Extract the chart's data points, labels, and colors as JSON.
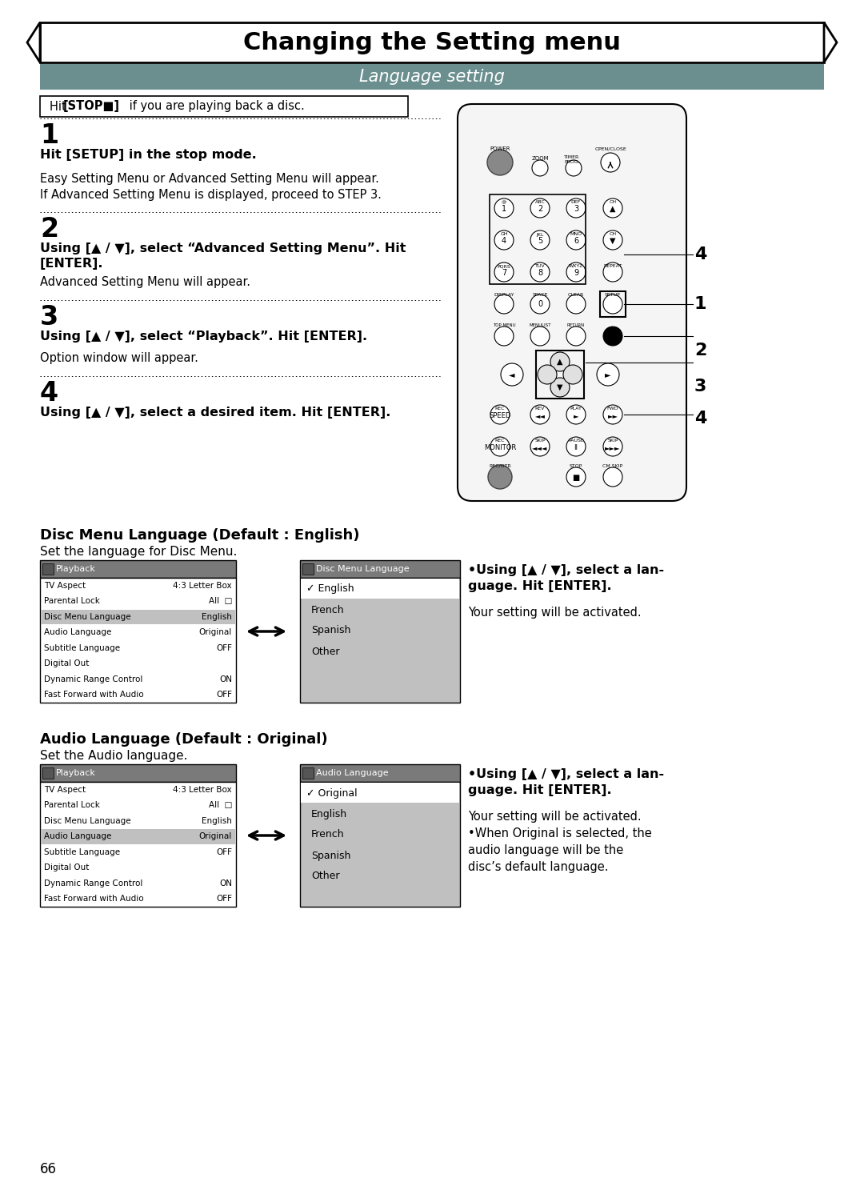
{
  "title": "Changing the Setting menu",
  "subtitle": "Language setting",
  "stop_note_plain": "Hit ",
  "stop_note_bold": "[STOP■]",
  "stop_note_rest": " if you are playing back a disc.",
  "steps": [
    {
      "number": "1",
      "bold_text": "Hit [SETUP] in the stop mode.",
      "normal_text": "Easy Setting Menu or Advanced Setting Menu will appear.\nIf Advanced Setting Menu is displayed, proceed to STEP 3."
    },
    {
      "number": "2",
      "bold_text": "Using [▲ / ▼], select “Advanced Setting Menu”. Hit\n[ENTER].",
      "normal_text": "Advanced Setting Menu will appear."
    },
    {
      "number": "3",
      "bold_text": "Using [▲ / ▼], select “Playback”. Hit [ENTER].",
      "normal_text": "Option window will appear."
    },
    {
      "number": "4",
      "bold_text": "Using [▲ / ▼], select a desired item. Hit [ENTER].",
      "normal_text": ""
    }
  ],
  "section1_title": "Disc Menu Language (Default : English)",
  "section1_sub": "Set the language for Disc Menu.",
  "playback_menu_items": [
    [
      "TV Aspect",
      "4:3 Letter Box"
    ],
    [
      "Parental Lock",
      "All  □"
    ],
    [
      "Disc Menu Language",
      "English"
    ],
    [
      "Audio Language",
      "Original"
    ],
    [
      "Subtitle Language",
      "OFF"
    ],
    [
      "Digital Out",
      ""
    ],
    [
      "Dynamic Range Control",
      "ON"
    ],
    [
      "Fast Forward with Audio",
      "OFF"
    ]
  ],
  "disc_highlight_row": 2,
  "disc_menu_lang_items": [
    "English",
    "French",
    "Spanish",
    "Other"
  ],
  "disc_note_bold": "•Using [▲ / ▼], select a lan-\nguage. Hit [ENTER].",
  "disc_note_normal": "Your setting will be activated.",
  "section2_title": "Audio Language (Default : Original)",
  "section2_sub": "Set the Audio language.",
  "audio_menu_items": [
    [
      "TV Aspect",
      "4:3 Letter Box"
    ],
    [
      "Parental Lock",
      "All  □"
    ],
    [
      "Disc Menu Language",
      "English"
    ],
    [
      "Audio Language",
      "Original"
    ],
    [
      "Subtitle Language",
      "OFF"
    ],
    [
      "Digital Out",
      ""
    ],
    [
      "Dynamic Range Control",
      "ON"
    ],
    [
      "Fast Forward with Audio",
      "OFF"
    ]
  ],
  "audio_highlight_row": 3,
  "audio_lang_items": [
    "Original",
    "English",
    "French",
    "Spanish",
    "Other"
  ],
  "audio_note_bold": "•Using [▲ / ▼], select a lan-\nguage. Hit [ENTER].",
  "audio_note_normal": "Your setting will be activated.\n•When Original is selected, the\naudio language will be the\ndisc’s default language.",
  "page_number": "66"
}
